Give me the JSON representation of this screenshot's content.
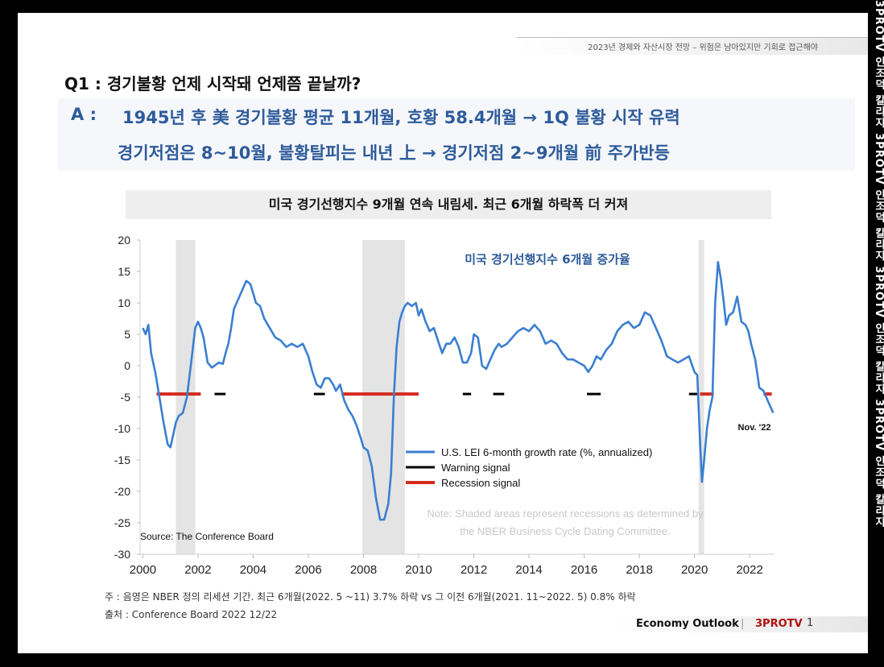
{
  "header": {
    "subtitle": "2023년 경제와 자산시장 전망 – 위험은 남아있지만 기회로 접근해야"
  },
  "question": "Q1 : 경기불황 언제 시작돼 언제쯤 끝날까?",
  "answer": {
    "label": "A  :",
    "line1": "1945년 후 美 경기불황 평균 11개월, 호황 58.4개월 → 1Q 불황 시작 유력",
    "line2": "경기저점은 8~10월, 불황탈피는 내년 上 → 경기저점 2~9개월 前 주가반등"
  },
  "chart_title": "미국 경기선행지수 9개월 연속 내림세. 최근 6개월 하락폭 더 커져",
  "footnote": "주 : 음영은 NBER 정의 리세션 기간. 최근 6개월(2022. 5 ~11) 3.7% 하락 vs 그 이전 6개월(2021. 11~2022. 5) 0.8% 하락",
  "source_note": "출처 : Conference Board 2022 12/22",
  "footer": {
    "outlook": "Economy Outlook",
    "separator": "|",
    "brand": "3PROTV",
    "page": "1"
  },
  "watermark": "3PROTV   인조덕 칼리지   3PROTV   인조덕 칼리지   3PROTV   인조덕 칼리지   3PROTV   인조덕 칼리지",
  "colors": {
    "line": "#3a7fcf",
    "warning": "#000000",
    "recession": "#d42b1e",
    "shade": "#e4e4e4",
    "title_blue": "#2e5b9a"
  },
  "chart_data": {
    "type": "line",
    "xlabel": "",
    "ylabel": "",
    "xlim": [
      1999.9,
      2022.9
    ],
    "ylim": [
      -30,
      20
    ],
    "yticks": [
      "20",
      "15",
      "10",
      "5",
      "0",
      "-5",
      "-10",
      "-15",
      "-20",
      "-25",
      "-30"
    ],
    "xticks": [
      "2000",
      "2002",
      "2004",
      "2006",
      "2008",
      "2010",
      "2012",
      "2014",
      "2016",
      "2018",
      "2020",
      "2022"
    ],
    "inner_title": "미국 경기선행지수 6개월 증가율",
    "end_label": "Nov. '22",
    "source": "Source: The Conference Board",
    "note_line1": "Note: Shaded areas represent recessions as determined by",
    "note_line2": "the NBER Business Cycle Dating Committee.",
    "legend": [
      {
        "label": "U.S. LEI 6-month growth rate (%, annualized)",
        "kind": "line"
      },
      {
        "label": "Warning signal",
        "kind": "warning"
      },
      {
        "label": "Recession signal",
        "kind": "recession"
      }
    ],
    "recessions": [
      [
        2001.2,
        2001.9
      ],
      [
        2007.95,
        2009.5
      ],
      [
        2020.15,
        2020.35
      ]
    ],
    "signal_level": -4.5,
    "warning_signals": [
      [
        2002.6,
        2003.0
      ],
      [
        2006.2,
        2006.6
      ],
      [
        2011.6,
        2011.9
      ],
      [
        2012.7,
        2013.1
      ],
      [
        2016.1,
        2016.6
      ],
      [
        2019.8,
        2020.1
      ]
    ],
    "recession_signals": [
      [
        2000.5,
        2002.1
      ],
      [
        2007.2,
        2010.0
      ],
      [
        2020.2,
        2020.7
      ],
      [
        2022.5,
        2022.8
      ]
    ],
    "series": [
      {
        "name": "U.S. LEI 6-month growth rate (%, annualized)",
        "x": [
          2000.0,
          2000.1,
          2000.2,
          2000.3,
          2000.45,
          2000.6,
          2000.75,
          2000.9,
          2001.0,
          2001.1,
          2001.2,
          2001.3,
          2001.45,
          2001.6,
          2001.75,
          2001.9,
          2002.0,
          2002.1,
          2002.2,
          2002.35,
          2002.5,
          2002.6,
          2002.75,
          2002.9,
          2003.0,
          2003.1,
          2003.2,
          2003.3,
          2003.45,
          2003.6,
          2003.75,
          2003.9,
          2004.0,
          2004.1,
          2004.25,
          2004.4,
          2004.6,
          2004.8,
          2005.0,
          2005.2,
          2005.4,
          2005.6,
          2005.8,
          2006.0,
          2006.15,
          2006.3,
          2006.45,
          2006.6,
          2006.75,
          2006.9,
          2007.0,
          2007.15,
          2007.3,
          2007.45,
          2007.6,
          2007.75,
          2007.9,
          2008.0,
          2008.15,
          2008.3,
          2008.45,
          2008.6,
          2008.75,
          2008.9,
          2009.0,
          2009.1,
          2009.2,
          2009.3,
          2009.4,
          2009.5,
          2009.6,
          2009.75,
          2009.9,
          2010.0,
          2010.1,
          2010.25,
          2010.4,
          2010.55,
          2010.7,
          2010.85,
          2011.0,
          2011.15,
          2011.3,
          2011.45,
          2011.6,
          2011.75,
          2011.9,
          2012.0,
          2012.15,
          2012.3,
          2012.45,
          2012.6,
          2012.75,
          2012.9,
          2013.0,
          2013.2,
          2013.4,
          2013.6,
          2013.8,
          2014.0,
          2014.2,
          2014.4,
          2014.6,
          2014.8,
          2015.0,
          2015.2,
          2015.4,
          2015.6,
          2015.8,
          2016.0,
          2016.15,
          2016.3,
          2016.45,
          2016.6,
          2016.8,
          2017.0,
          2017.2,
          2017.4,
          2017.6,
          2017.8,
          2018.0,
          2018.2,
          2018.4,
          2018.6,
          2018.8,
          2019.0,
          2019.2,
          2019.4,
          2019.6,
          2019.8,
          2020.0,
          2020.1,
          2020.2,
          2020.27,
          2020.35,
          2020.45,
          2020.55,
          2020.65,
          2020.75,
          2020.85,
          2020.95,
          2021.05,
          2021.15,
          2021.25,
          2021.4,
          2021.55,
          2021.7,
          2021.85,
          2021.95,
          2022.05,
          2022.2,
          2022.35,
          2022.5,
          2022.65,
          2022.8,
          2022.85
        ],
        "y": [
          6.0,
          5.0,
          6.5,
          2.0,
          -1.0,
          -5.0,
          -9.0,
          -12.5,
          -13.0,
          -11.0,
          -9.0,
          -8.0,
          -7.5,
          -5.0,
          0.5,
          6.0,
          7.0,
          6.0,
          4.5,
          0.5,
          -0.3,
          0.0,
          0.5,
          0.3,
          2.0,
          3.5,
          6.0,
          9.0,
          10.5,
          12.0,
          13.5,
          13.0,
          11.5,
          10.0,
          9.5,
          7.5,
          6.0,
          4.5,
          4.0,
          3.0,
          3.5,
          3.0,
          3.5,
          1.5,
          -1.0,
          -3.0,
          -3.5,
          -2.0,
          -2.0,
          -3.0,
          -4.0,
          -3.0,
          -5.5,
          -7.0,
          -8.0,
          -9.5,
          -11.5,
          -13.0,
          -13.5,
          -16.0,
          -21.0,
          -24.5,
          -24.5,
          -22.0,
          -17.0,
          -5.0,
          3.0,
          7.0,
          8.5,
          9.5,
          10.0,
          9.5,
          10.0,
          8.0,
          9.0,
          7.0,
          5.5,
          6.0,
          4.0,
          2.0,
          3.5,
          3.5,
          4.5,
          3.0,
          0.5,
          0.5,
          2.0,
          5.0,
          4.5,
          0.0,
          -0.5,
          1.0,
          2.5,
          3.5,
          3.0,
          3.5,
          4.5,
          5.5,
          6.0,
          5.5,
          6.5,
          5.5,
          3.5,
          4.0,
          3.5,
          2.0,
          1.0,
          1.0,
          0.5,
          0.0,
          -1.0,
          0.0,
          1.5,
          1.0,
          2.5,
          3.5,
          5.5,
          6.5,
          7.0,
          6.0,
          6.5,
          8.5,
          8.0,
          6.0,
          4.0,
          1.5,
          1.0,
          0.5,
          1.0,
          1.5,
          -1.0,
          -1.5,
          -12.0,
          -18.5,
          -15.0,
          -10.0,
          -7.0,
          -5.0,
          10.0,
          16.5,
          14.0,
          10.5,
          6.5,
          8.0,
          8.5,
          11.0,
          7.0,
          6.5,
          5.5,
          3.5,
          1.0,
          -3.5,
          -4.0,
          -5.5,
          -7.0,
          -7.5
        ]
      }
    ]
  }
}
